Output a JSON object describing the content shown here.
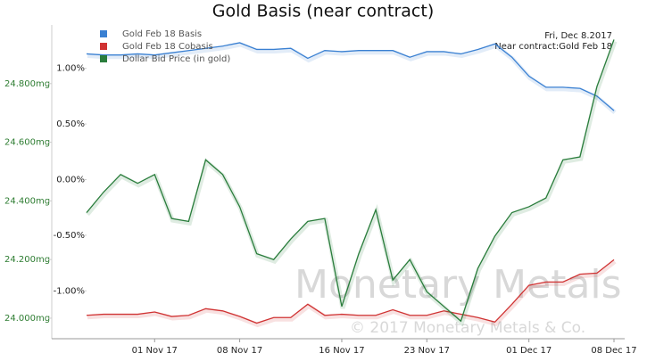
{
  "chart_data": {
    "type": "line",
    "title": "Gold Basis (near contract)",
    "info": [
      "Fri, Dec 8.2017",
      "Near contract:Gold Feb 18"
    ],
    "watermark": [
      "Monetary Metals",
      "© 2017 Monetary Metals & Co."
    ],
    "categories": [
      null,
      null,
      null,
      null,
      "01 Nov 17",
      null,
      null,
      null,
      null,
      "08 Nov 17",
      null,
      null,
      null,
      null,
      null,
      "16 Nov 17",
      null,
      null,
      null,
      null,
      "23 Nov 17",
      null,
      null,
      null,
      null,
      null,
      "01 Dec 17",
      null,
      null,
      null,
      null,
      "08 Dec 17"
    ],
    "ylim": [
      -1.43,
      1.39
    ],
    "yticks": [
      {
        "value": -1.0,
        "label": "-1.00%"
      },
      {
        "value": -0.5,
        "label": "-0.50%"
      },
      {
        "value": 0,
        "label": "0.00%"
      },
      {
        "value": 0.5,
        "label": "0.50%"
      },
      {
        "value": 1.0,
        "label": "1.00%"
      }
    ],
    "y2lim": [
      23.93,
      25.0
    ],
    "y2ticks": [
      {
        "value": 24.0,
        "label": "24.000mg"
      },
      {
        "value": 24.2,
        "label": "24.200mg"
      },
      {
        "value": 24.4,
        "label": "24.400mg"
      },
      {
        "value": 24.6,
        "label": "24.600mg"
      },
      {
        "value": 24.8,
        "label": "24.800mg"
      }
    ],
    "legend": "top-left",
    "series": [
      {
        "name": "Gold Feb 18 Basis",
        "color": "#3a80d2",
        "values": [
          1.13,
          1.12,
          1.12,
          1.13,
          1.12,
          1.14,
          1.16,
          1.18,
          1.2,
          1.23,
          1.17,
          1.17,
          1.18,
          1.09,
          1.16,
          1.15,
          1.16,
          1.16,
          1.16,
          1.1,
          1.15,
          1.15,
          1.13,
          1.17,
          1.22,
          1.1,
          0.93,
          0.83,
          0.83,
          0.82,
          0.75,
          0.62
        ]
      },
      {
        "name": "Gold Feb 18 Cobasis",
        "color": "#d03333",
        "values": [
          -1.22,
          -1.21,
          -1.21,
          -1.21,
          -1.19,
          -1.23,
          -1.22,
          -1.16,
          -1.18,
          -1.23,
          -1.29,
          -1.24,
          -1.24,
          -1.12,
          -1.22,
          -1.21,
          -1.22,
          -1.22,
          -1.17,
          -1.22,
          -1.22,
          -1.18,
          -1.21,
          -1.24,
          -1.28,
          -1.12,
          -0.95,
          -0.92,
          -0.92,
          -0.85,
          -0.84,
          -0.72
        ]
      },
      {
        "name": "Dollar Bid Price (in gold)",
        "color": "#2a7d3c",
        "axis": "y2",
        "values": [
          24.36,
          24.43,
          24.49,
          24.46,
          24.49,
          24.34,
          24.33,
          24.54,
          24.49,
          24.38,
          24.22,
          24.2,
          24.27,
          24.33,
          24.34,
          24.04,
          24.22,
          24.37,
          24.13,
          24.2,
          24.09,
          24.04,
          23.99,
          24.17,
          24.28,
          24.36,
          24.38,
          24.41,
          24.54,
          24.55,
          24.79,
          24.95
        ]
      }
    ]
  }
}
